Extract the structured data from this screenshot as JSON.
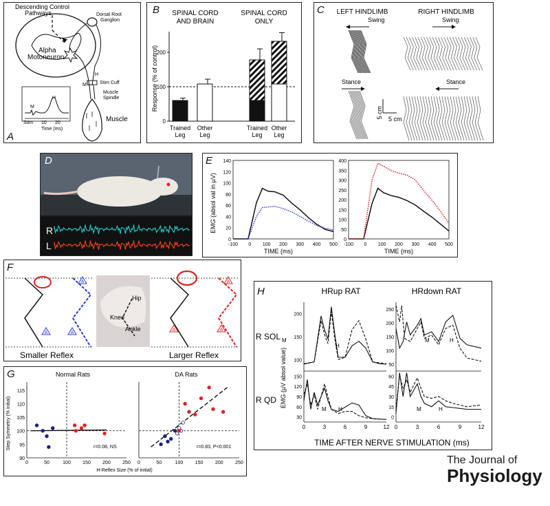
{
  "panelA": {
    "label": "A",
    "descending": "Descending Control",
    "pathways": "Pathways",
    "dorsal_root": "Dorsal Root",
    "ganglion": "Ganglion",
    "alpha": "Alpha",
    "motoneuron": "Motoneuron",
    "stim_cuff": "Stim Cuff",
    "muscle_spindle_1": "Muscle",
    "muscle_spindle_2": "Spindle",
    "muscle": "Muscle",
    "h_mark": "H",
    "m_mark": "M",
    "inset_stim": "Stim",
    "inset_ticks": [
      "10",
      "20"
    ],
    "inset_xlabel": "Time (ms)",
    "inset_h": "H",
    "inset_m": "M"
  },
  "panelB": {
    "label": "B",
    "group1_line1": "SPINAL CORD",
    "group1_line2": "AND BRAIN",
    "group2_line1": "SPINAL CORD",
    "group2_line2": "ONLY",
    "ylabel": "Response (% of control)",
    "yticks": [
      "0",
      "100",
      "200"
    ],
    "xlabels": [
      "Trained",
      "Leg",
      "Other",
      "Leg",
      "Trained",
      "Leg",
      "Other",
      "Leg"
    ],
    "chart_data": {
      "type": "bar",
      "categories": [
        "Trained Leg (spinal cord and brain)",
        "Other Leg (spinal cord and brain)",
        "Trained Leg (spinal cord only)",
        "Other Leg (spinal cord only)"
      ],
      "values": [
        60,
        108,
        178,
        232
      ],
      "errors": [
        7,
        14,
        32,
        25
      ],
      "baseline": 100,
      "ylim": [
        0,
        260
      ]
    }
  },
  "panelC": {
    "label": "C",
    "left_title": "LEFT HINDLIMB",
    "right_title": "RIGHT HINDLIMB",
    "swing": "Swing",
    "stance": "Stance",
    "scale_v": "5 cm",
    "scale_h": "5 cm"
  },
  "panelD": {
    "label": "D",
    "r": "R",
    "l": "L"
  },
  "panelE": {
    "label": "E",
    "ylabel": "EMG (absol val in µV)",
    "xlabel": "TIME (ms)",
    "left_yticks": [
      "0",
      "20",
      "40",
      "60",
      "80",
      "100",
      "120",
      "140"
    ],
    "right_yticks": [
      "0",
      "50",
      "100",
      "150",
      "200",
      "250",
      "300",
      "350",
      "400"
    ],
    "xticks": [
      "-100",
      "0",
      "100",
      "200",
      "300",
      "400",
      "500"
    ],
    "chart_data": [
      {
        "type": "line",
        "x": [
          -100,
          -10,
          40,
          75,
          110,
          150,
          200,
          250,
          300,
          350,
          400,
          450,
          500
        ],
        "series": [
          {
            "name": "solid",
            "values": [
              0,
              0,
              65,
              90,
              85,
              84,
              78,
              64,
              52,
              38,
              26,
              17,
              13
            ]
          },
          {
            "name": "dotted",
            "values": [
              0,
              0,
              40,
              56,
              57,
              58,
              54,
              48,
              40,
              32,
              24,
              19,
              16
            ]
          }
        ],
        "ylim": [
          0,
          140
        ]
      },
      {
        "type": "line",
        "x": [
          -100,
          -10,
          40,
          75,
          110,
          150,
          200,
          250,
          300,
          350,
          400,
          450,
          500
        ],
        "series": [
          {
            "name": "solid",
            "values": [
              0,
              0,
              180,
              258,
              235,
              222,
              212,
              195,
              172,
              140,
              110,
              75,
              40
            ]
          },
          {
            "name": "dotted",
            "values": [
              0,
              0,
              300,
              385,
              370,
              350,
              335,
              325,
              300,
              245,
              195,
              140,
              80
            ]
          }
        ],
        "ylim": [
          0,
          400
        ]
      }
    ]
  },
  "panelF": {
    "label": "F",
    "smaller": "Smaller Reflex",
    "larger": "Larger Reflex",
    "hip": "Hip",
    "knee": "Knee",
    "ankle": "Ankle",
    "a_mark": "A"
  },
  "panelG": {
    "label": "G",
    "title_left": "Normal Rats",
    "title_right": "DA Rats",
    "ylabel": "Step Symmetry (% initial)",
    "xlabel": "H-Reflex Size (% of initial)",
    "yticks": [
      "90",
      "95",
      "100",
      "105",
      "110",
      "115"
    ],
    "xticks_left": [
      "0",
      "50",
      "100",
      "150",
      "200",
      "250"
    ],
    "xticks_right": [
      "0",
      "50",
      "100",
      "150",
      "200",
      "250"
    ],
    "stat_left": "r=0.08, NS",
    "stat_right": "r=0.83, P<0.001",
    "chart_data": [
      {
        "type": "scatter",
        "title": "Normal Rats",
        "xlim": [
          0,
          250
        ],
        "ylim": [
          90,
          118
        ],
        "series": [
          {
            "name": "blue",
            "x": [
              25,
              40,
              50,
              55,
              65
            ],
            "y": [
              102,
              100,
              98,
              94,
              101
            ]
          },
          {
            "name": "red",
            "x": [
              120,
              123,
              137,
              145,
              195
            ],
            "y": [
              102,
              100,
              101,
              102,
              99
            ]
          }
        ]
      },
      {
        "type": "scatter",
        "title": "DA Rats",
        "xlim": [
          0,
          250
        ],
        "ylim": [
          90,
          118
        ],
        "series": [
          {
            "name": "blue",
            "x": [
              55,
              65,
              72,
              80,
              90
            ],
            "y": [
              95,
              98,
              96,
              97,
              100
            ]
          },
          {
            "name": "open",
            "x": [
              95,
              100,
              105,
              110
            ],
            "y": [
              99,
              101,
              100,
              103
            ]
          },
          {
            "name": "red",
            "x": [
              100,
              115,
              125,
              140,
              155,
              175,
              185,
              210
            ],
            "y": [
              100,
              110,
              107,
              106,
              112,
              116,
              108,
              107
            ]
          }
        ]
      }
    ]
  },
  "panelH": {
    "label": "H",
    "title_left": "HRup RAT",
    "title_right": "HRdown RAT",
    "row1": "R SOL",
    "row2": "R QD",
    "ylabel": "EMG (µV absol value)",
    "xlabel": "TIME AFTER NERVE STIMULATION (ms)",
    "xticks": [
      "0",
      "3",
      "6",
      "9",
      "12"
    ],
    "yticks_tl": [
      "100",
      "150",
      "200"
    ],
    "yticks_tr": [
      "50",
      "100",
      "150",
      "200",
      "250"
    ],
    "yticks_bl": [
      "30",
      "60",
      "90",
      "120",
      "150"
    ],
    "yticks_br": [
      "0",
      "15",
      "30",
      "45",
      "60"
    ],
    "m": "M",
    "h": "H"
  },
  "journal": {
    "line1": "The Journal of",
    "line2": "Physiology"
  }
}
